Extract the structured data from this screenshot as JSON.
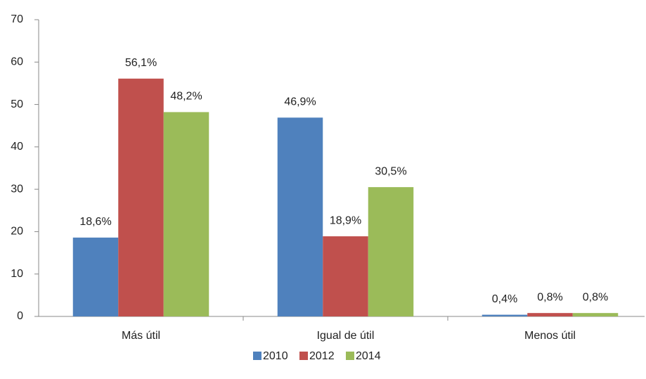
{
  "chart_data": {
    "type": "bar",
    "categories": [
      "Más útil",
      "Igual de útil",
      "Menos útil"
    ],
    "series": [
      {
        "name": "2010",
        "color": "#4f81bd",
        "values": [
          18.6,
          46.9,
          0.4
        ],
        "value_labels": [
          "18,6%",
          "46,9%",
          "0,4%"
        ]
      },
      {
        "name": "2012",
        "color": "#c0504d",
        "values": [
          56.1,
          18.9,
          0.8
        ],
        "value_labels": [
          "56,1%",
          "18,9%",
          "0,8%"
        ]
      },
      {
        "name": "2014",
        "color": "#9bbb59",
        "values": [
          48.2,
          30.5,
          0.8
        ],
        "value_labels": [
          "48,2%",
          "30,5%",
          "0,8%"
        ]
      }
    ],
    "ylim": [
      0,
      70
    ],
    "yticks": [
      0,
      10,
      20,
      30,
      40,
      50,
      60,
      70
    ],
    "grid": false,
    "legend": "bottom"
  }
}
